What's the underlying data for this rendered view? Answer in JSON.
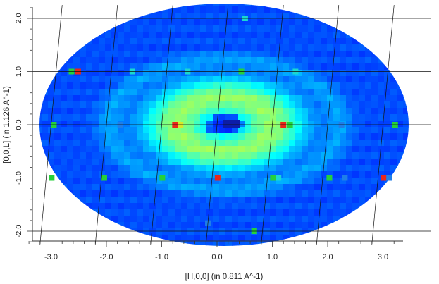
{
  "chart_data": {
    "type": "heatmap",
    "title": "",
    "xlabel": "[H,0,0] (in 0.811 A^-1)",
    "ylabel": "[0,0,L] (in 1.126 A^-1)",
    "xlim": [
      -3.4,
      3.3
    ],
    "ylim": [
      -2.25,
      2.25
    ],
    "x_ticks": [
      "-3.0",
      "-2.0",
      "-1.0",
      "0.0",
      "1.0",
      "2.0",
      "3.0"
    ],
    "y_ticks": [
      "-2.0",
      "-1.0",
      "0.0",
      "1.0",
      "2.0"
    ],
    "grid": true,
    "grid_style": "skewed reciprocal-lattice grid lines",
    "colormap": "jet (dark blue low → cyan → green → red high)",
    "background_intensity": "low (dark blue) at edges, diffuse cyan ring around (0,0), dip at center",
    "bragg_peaks": [
      {
        "h": 0.33,
        "l": 2.0,
        "level": "cyan"
      },
      {
        "h": -2.6,
        "l": 1.0,
        "level": "red"
      },
      {
        "h": -2.72,
        "l": 1.0,
        "level": "green"
      },
      {
        "h": -1.62,
        "l": 1.0,
        "level": "cyan"
      },
      {
        "h": -0.62,
        "l": 1.0,
        "level": "cyan"
      },
      {
        "h": 0.35,
        "l": 1.0,
        "level": "green"
      },
      {
        "h": 1.33,
        "l": 1.0,
        "level": "cyan"
      },
      {
        "h": -2.95,
        "l": 0.0,
        "level": "green"
      },
      {
        "h": -1.75,
        "l": 0.0,
        "level": "blue"
      },
      {
        "h": -0.76,
        "l": 0.0,
        "level": "red"
      },
      {
        "h": -0.66,
        "l": 0.0,
        "level": "yellow"
      },
      {
        "h": 1.2,
        "l": 0.0,
        "level": "red"
      },
      {
        "h": 1.32,
        "l": 0.0,
        "level": "green"
      },
      {
        "h": 2.25,
        "l": 0.0,
        "level": "blue"
      },
      {
        "h": 3.22,
        "l": 0.0,
        "level": "green"
      },
      {
        "h": -2.9,
        "l": -1.0,
        "level": "green"
      },
      {
        "h": -1.95,
        "l": -1.0,
        "level": "green"
      },
      {
        "h": -0.9,
        "l": -1.0,
        "level": "green"
      },
      {
        "h": 0.1,
        "l": -1.0,
        "level": "red"
      },
      {
        "h": 1.1,
        "l": -1.0,
        "level": "green"
      },
      {
        "h": 1.2,
        "l": -1.0,
        "level": "cyan"
      },
      {
        "h": 2.12,
        "l": -1.0,
        "level": "green"
      },
      {
        "h": 2.4,
        "l": -1.0,
        "level": "blue"
      },
      {
        "h": 3.1,
        "l": -1.0,
        "level": "red"
      },
      {
        "h": 3.2,
        "l": -1.0,
        "level": "blue"
      },
      {
        "h": 0.85,
        "l": -2.0,
        "level": "green"
      },
      {
        "h": 0.0,
        "l": -1.85,
        "level": "blue"
      }
    ]
  }
}
